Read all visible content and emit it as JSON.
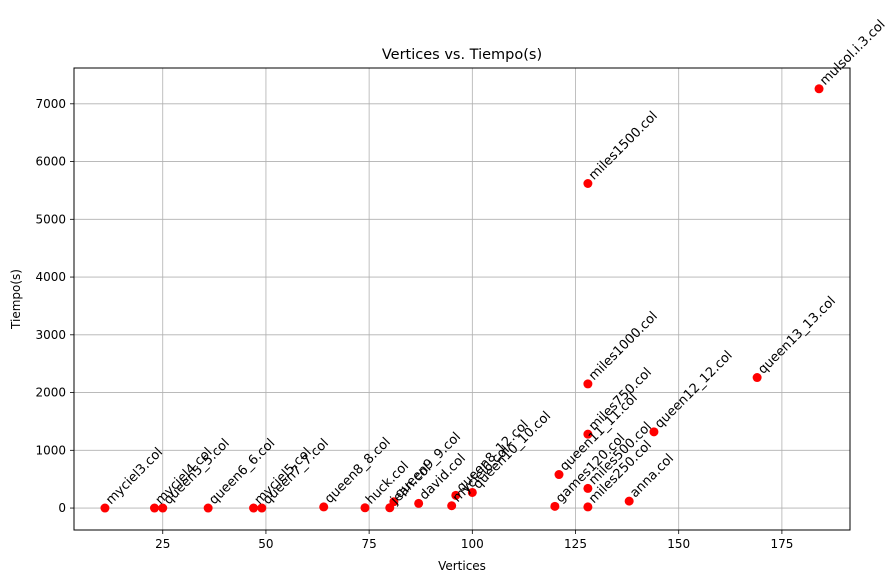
{
  "chart_data": {
    "type": "scatter",
    "title": "Vertices vs. Tiempo(s)",
    "xlabel": "Vertices",
    "ylabel": "Tiempo(s)",
    "xlim": [
      3.5,
      191.5
    ],
    "ylim": [
      -380,
      7620
    ],
    "x_ticks": [
      25,
      50,
      75,
      100,
      125,
      150,
      175
    ],
    "y_ticks": [
      0,
      1000,
      2000,
      3000,
      4000,
      5000,
      6000,
      7000
    ],
    "grid": true,
    "marker_color": "#ff0000",
    "points": [
      {
        "label": "myciel3.col",
        "x": 11,
        "y": 0
      },
      {
        "label": "myciel4.col",
        "x": 23,
        "y": 0
      },
      {
        "label": "queen5_5.col",
        "x": 25,
        "y": 0
      },
      {
        "label": "queen6_6.col",
        "x": 36,
        "y": 0
      },
      {
        "label": "myciel5.col",
        "x": 47,
        "y": 0
      },
      {
        "label": "queen7_7.col",
        "x": 49,
        "y": 0
      },
      {
        "label": "queen8_8.col",
        "x": 64,
        "y": 20
      },
      {
        "label": "huck.col",
        "x": 74,
        "y": 5
      },
      {
        "label": "jean.col",
        "x": 80,
        "y": 5
      },
      {
        "label": "queen9_9.col",
        "x": 81,
        "y": 110
      },
      {
        "label": "david.col",
        "x": 87,
        "y": 80
      },
      {
        "label": "myciel6.col",
        "x": 95,
        "y": 40
      },
      {
        "label": "queen8_12.col",
        "x": 96,
        "y": 220
      },
      {
        "label": "queen10_10.col",
        "x": 100,
        "y": 270
      },
      {
        "label": "games120.col",
        "x": 120,
        "y": 30
      },
      {
        "label": "queen11_11.col",
        "x": 121,
        "y": 580
      },
      {
        "label": "miles1500.col",
        "x": 128,
        "y": 5620
      },
      {
        "label": "miles1000.col",
        "x": 128,
        "y": 2150
      },
      {
        "label": "miles750.col",
        "x": 128,
        "y": 1280
      },
      {
        "label": "miles500.col",
        "x": 128,
        "y": 340
      },
      {
        "label": "miles250.col",
        "x": 128,
        "y": 20
      },
      {
        "label": "anna.col",
        "x": 138,
        "y": 120
      },
      {
        "label": "queen12_12.col",
        "x": 144,
        "y": 1320
      },
      {
        "label": "queen13_13.col",
        "x": 169,
        "y": 2260
      },
      {
        "label": "mulsol.i.3.col",
        "x": 184,
        "y": 7260
      }
    ]
  }
}
